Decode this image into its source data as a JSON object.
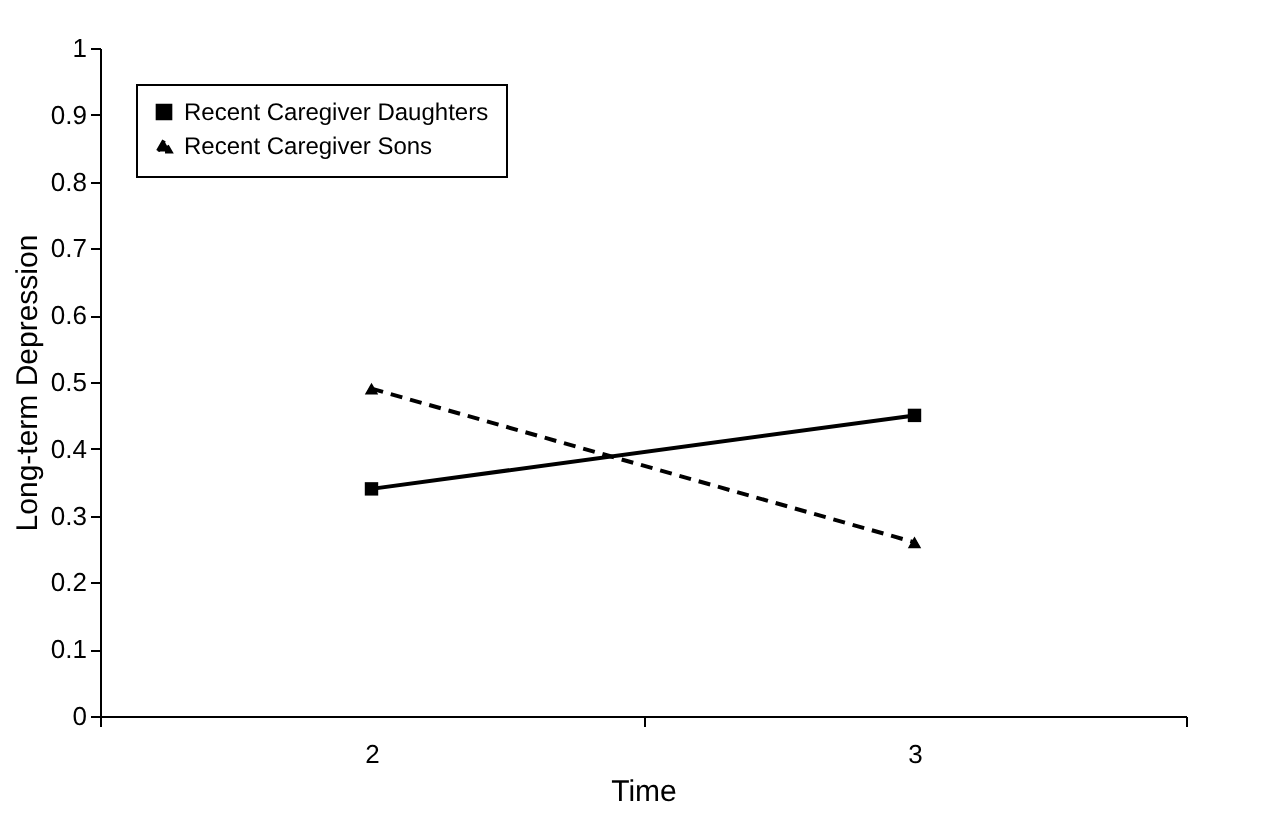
{
  "chart_data": {
    "type": "line",
    "xlabel": "Time",
    "ylabel": "Long-term Depression",
    "categories": [
      "2",
      "3"
    ],
    "series": [
      {
        "name": "Recent Caregiver Daughters",
        "color": "#000000",
        "values": [
          0.34,
          0.45
        ],
        "marker": "square",
        "line_style": "solid"
      },
      {
        "name": "Recent Caregiver Sons",
        "color": "#000000",
        "values": [
          0.49,
          0.26
        ],
        "marker": "triangle",
        "line_style": "dashed"
      }
    ],
    "ylim": [
      0,
      1
    ],
    "yticks": [
      0,
      0.1,
      0.2,
      0.3,
      0.4,
      0.5,
      0.6,
      0.7,
      0.8,
      0.9,
      1
    ],
    "grid": false,
    "legend": "top left"
  }
}
